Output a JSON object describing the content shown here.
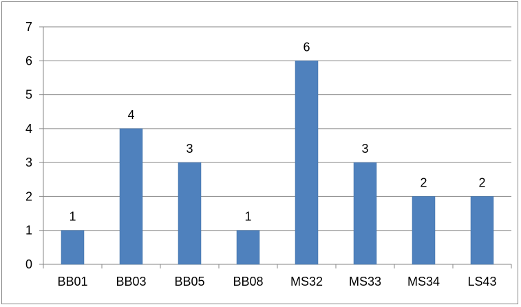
{
  "chart_data": {
    "type": "bar",
    "categories": [
      "BB01",
      "BB03",
      "BB05",
      "BB08",
      "MS32",
      "MS33",
      "MS34",
      "LS43"
    ],
    "values": [
      1,
      4,
      3,
      1,
      6,
      3,
      2,
      2
    ],
    "title": "",
    "xlabel": "",
    "ylabel": "",
    "ylim": [
      0,
      7
    ],
    "yticks": [
      0,
      1,
      2,
      3,
      4,
      5,
      6,
      7
    ],
    "grid": true,
    "legend": "none",
    "data_labels": true,
    "colors": {
      "bar": "#4f81bd",
      "bar_edge": "#3d6ca3",
      "grid": "#868686",
      "text": "#000000",
      "background": "#ffffff"
    }
  }
}
